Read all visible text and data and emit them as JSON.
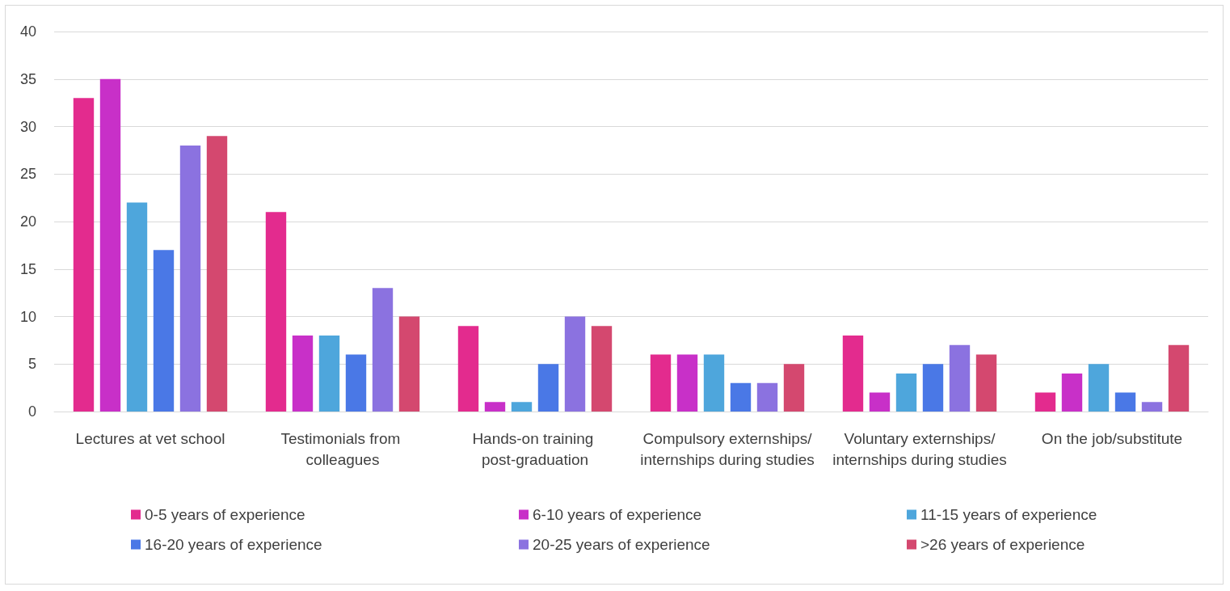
{
  "chart_data": {
    "type": "bar",
    "categories": [
      "Lectures at vet school",
      "Testimonials from colleagues",
      "Hands-on training post-graduation",
      "Compulsory externships/internships during studies",
      "Voluntary externships/internships during studies",
      "On the job/substitute"
    ],
    "series": [
      {
        "name": "0-5 years of experience",
        "color": "#e32b8e",
        "values": [
          33,
          21,
          9,
          6,
          8,
          2
        ]
      },
      {
        "name": "6-10 years of experience",
        "color": "#c830c8",
        "values": [
          35,
          8,
          1,
          6,
          2,
          4
        ]
      },
      {
        "name": "11-15 years of experience",
        "color": "#4ea6dc",
        "values": [
          22,
          8,
          1,
          6,
          4,
          5
        ]
      },
      {
        "name": "16-20 years of experience",
        "color": "#4a78e6",
        "values": [
          17,
          6,
          5,
          3,
          5,
          2
        ]
      },
      {
        "name": "20-25 years of experience",
        "color": "#8b72e0",
        "values": [
          28,
          13,
          10,
          3,
          7,
          1
        ]
      },
      {
        "name": ">26 years of experience",
        "color": "#d4486f",
        "values": [
          29,
          10,
          9,
          5,
          6,
          7
        ]
      }
    ],
    "ylim": [
      0,
      40
    ],
    "yticks": [
      0,
      5,
      10,
      15,
      20,
      25,
      30,
      35,
      40
    ],
    "grid": "y",
    "legend": "bottom"
  }
}
